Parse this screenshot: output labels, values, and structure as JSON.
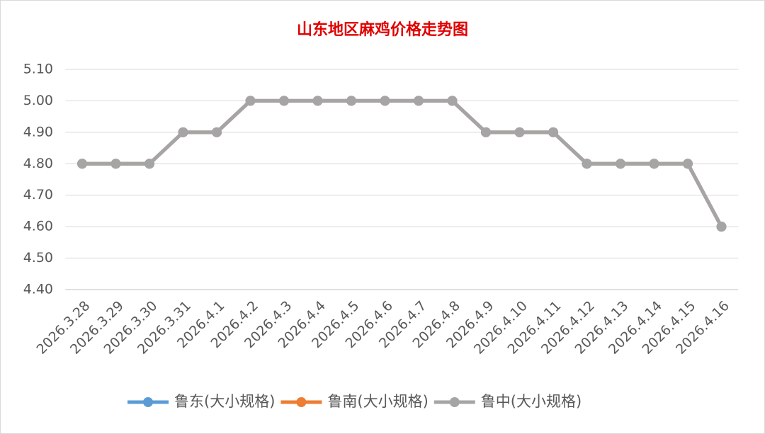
{
  "chart_data": {
    "type": "line",
    "title": "山东地区麻鸡价格走势图",
    "categories": [
      "2026.3.28",
      "2026.3.29",
      "2026.3.30",
      "2026.3.31",
      "2026.4.1",
      "2026.4.2",
      "2026.4.3",
      "2026.4.4",
      "2026.4.5",
      "2026.4.6",
      "2026.4.7",
      "2026.4.8",
      "2026.4.9",
      "2026.4.10",
      "2026.4.11",
      "2026.4.12",
      "2026.4.13",
      "2026.4.14",
      "2026.4.15",
      "2026.4.16"
    ],
    "series": [
      {
        "name": "鲁东(大小规格)",
        "color": "#5b9bd5",
        "values": [
          4.8,
          4.8,
          4.8,
          4.9,
          4.9,
          5.0,
          5.0,
          5.0,
          5.0,
          5.0,
          5.0,
          5.0,
          4.9,
          4.9,
          4.9,
          4.8,
          4.8,
          4.8,
          4.8,
          4.6
        ]
      },
      {
        "name": "鲁南(大小规格)",
        "color": "#ed7d31",
        "values": [
          4.8,
          4.8,
          4.8,
          4.9,
          4.9,
          5.0,
          5.0,
          5.0,
          5.0,
          5.0,
          5.0,
          5.0,
          4.9,
          4.9,
          4.9,
          4.8,
          4.8,
          4.8,
          4.8,
          4.6
        ]
      },
      {
        "name": "鲁中(大小规格)",
        "color": "#a5a5a5",
        "values": [
          4.8,
          4.8,
          4.8,
          4.9,
          4.9,
          5.0,
          5.0,
          5.0,
          5.0,
          5.0,
          5.0,
          5.0,
          4.9,
          4.9,
          4.9,
          4.8,
          4.8,
          4.8,
          4.8,
          4.6
        ]
      }
    ],
    "ylim": [
      4.4,
      5.1
    ],
    "yticks": [
      {
        "value": 4.4,
        "label": "4.40"
      },
      {
        "value": 4.5,
        "label": "4.50"
      },
      {
        "value": 4.6,
        "label": "4.60"
      },
      {
        "value": 4.7,
        "label": "4.70"
      },
      {
        "value": 4.8,
        "label": "4.80"
      },
      {
        "value": 4.9,
        "label": "4.90"
      },
      {
        "value": 5.0,
        "label": "5.00"
      },
      {
        "value": 5.1,
        "label": "5.10"
      }
    ],
    "grid": true,
    "legend": "bottom"
  }
}
